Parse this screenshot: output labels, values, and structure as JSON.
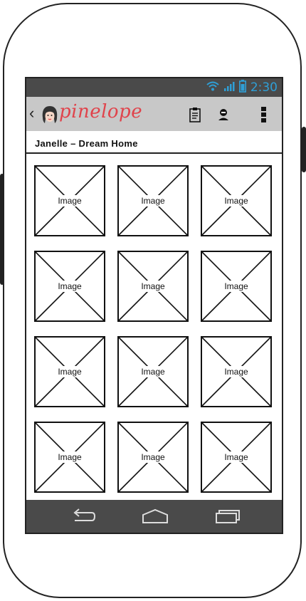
{
  "status_bar": {
    "time": "2:30",
    "icons": [
      "wifi-icon",
      "signal-icon",
      "battery-icon"
    ],
    "time_color": "#2f9fd6"
  },
  "action_bar": {
    "app_name": "pinelope",
    "brand_color": "#e0434b",
    "icons": [
      "back-chevron-icon",
      "clipboard-icon",
      "profile-icon",
      "overflow-menu-icon"
    ]
  },
  "page": {
    "title": "Janelle – Dream Home"
  },
  "gallery": {
    "tiles": [
      {
        "label": "Image"
      },
      {
        "label": "Image"
      },
      {
        "label": "Image"
      },
      {
        "label": "Image"
      },
      {
        "label": "Image"
      },
      {
        "label": "Image"
      },
      {
        "label": "Image"
      },
      {
        "label": "Image"
      },
      {
        "label": "Image"
      },
      {
        "label": "Image"
      },
      {
        "label": "Image"
      },
      {
        "label": "Image"
      }
    ]
  },
  "nav_bar": {
    "icons": [
      "back-icon",
      "home-icon",
      "recents-icon"
    ]
  }
}
